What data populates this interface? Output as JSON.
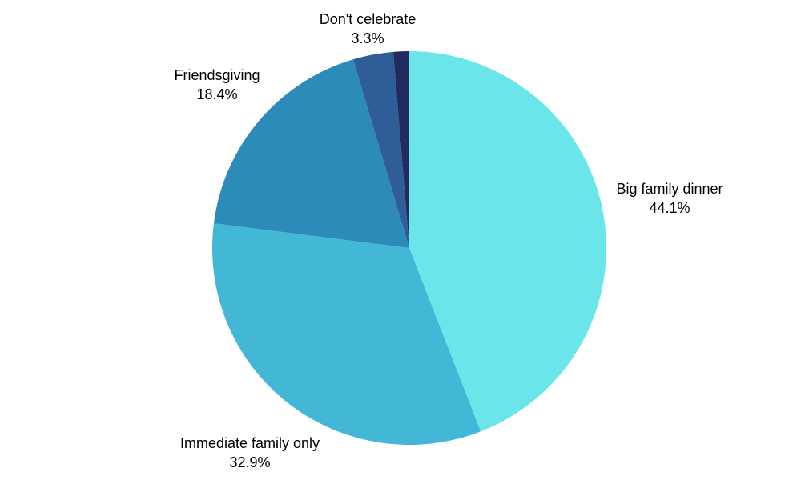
{
  "chart_data": {
    "type": "pie",
    "title": "",
    "start_angle_deg": 0,
    "direction": "clockwise",
    "slices": [
      {
        "label": "Big family dinner",
        "value": 44.1,
        "value_label": "44.1%",
        "color": "#6ae5e9",
        "show_label": true
      },
      {
        "label": "Immediate family only",
        "value": 32.9,
        "value_label": "32.9%",
        "color": "#42b8d6",
        "show_label": true
      },
      {
        "label": "Friendsgiving",
        "value": 18.4,
        "value_label": "18.4%",
        "color": "#2d8bba",
        "show_label": true
      },
      {
        "label": "Don't celebrate",
        "value": 3.3,
        "value_label": "3.3%",
        "color": "#2f5d98",
        "show_label": true
      },
      {
        "label": "",
        "value": 1.3,
        "value_label": "",
        "color": "#232b5e",
        "show_label": false
      }
    ]
  }
}
